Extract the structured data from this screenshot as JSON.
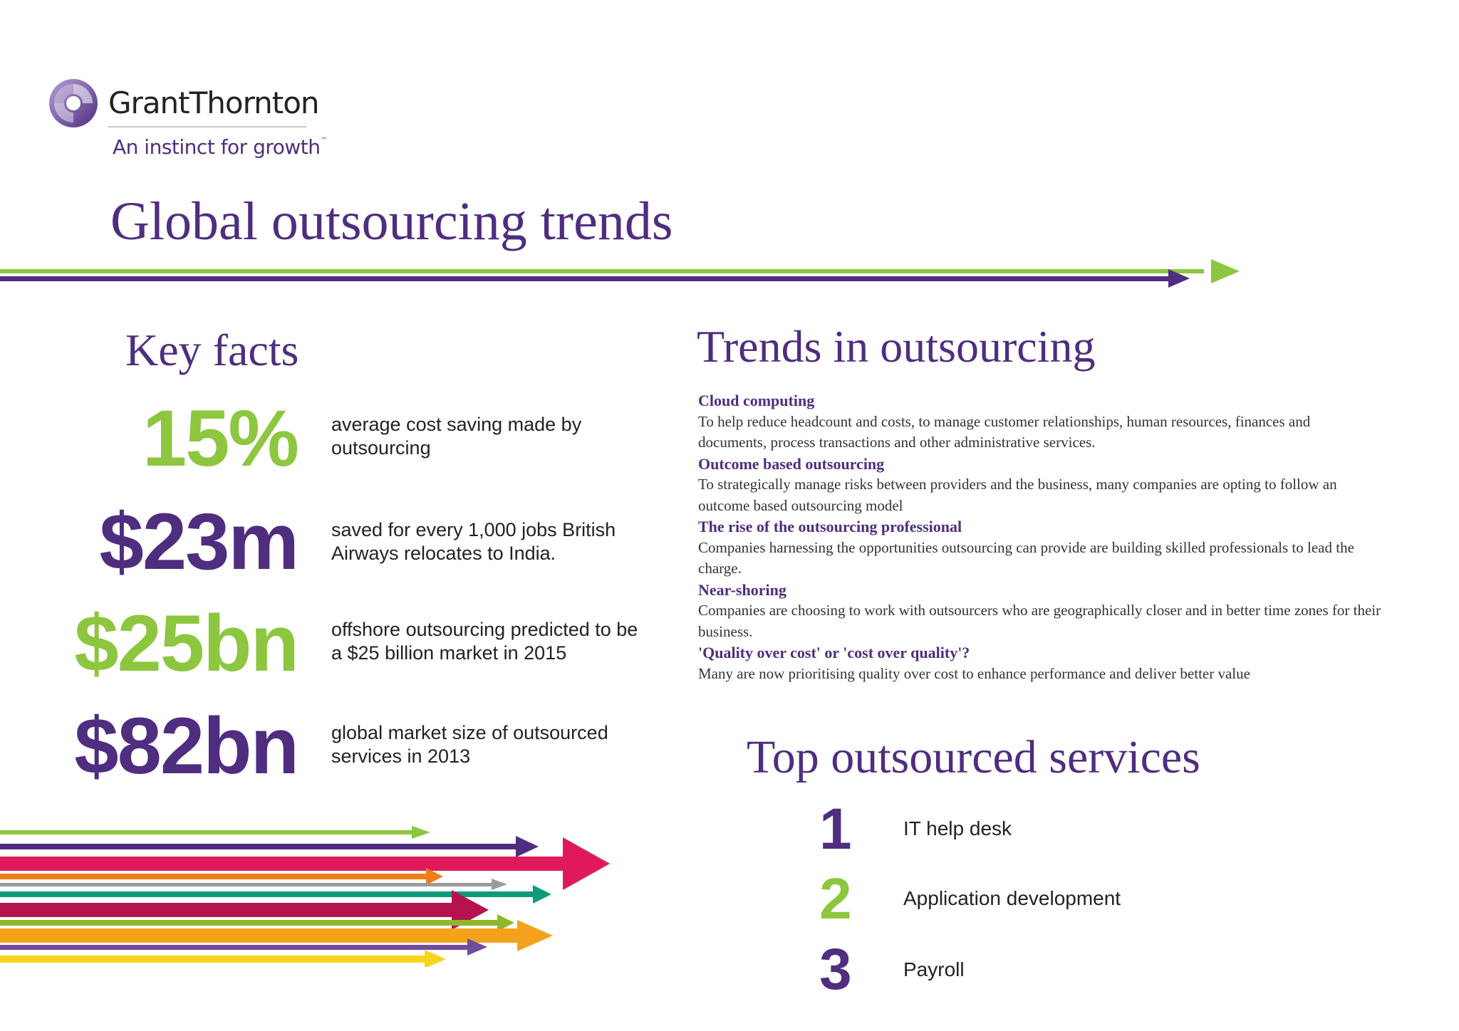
{
  "brand": {
    "name": "GrantThornton",
    "tagline": "An instinct for growth",
    "trademark": "™",
    "colors": {
      "purple": "#4f2d7f",
      "green": "#8dc63f"
    },
    "icon": "grant-thornton-logo-icon"
  },
  "title": "Global outsourcing trends",
  "key_facts": {
    "title": "Key facts",
    "items": [
      {
        "value": "15%",
        "text": "average cost saving made by outsourcing",
        "color": "#8dc63f"
      },
      {
        "value": "$23m",
        "text": "saved for every 1,000 jobs British Airways relocates  to India.",
        "color": "#4f2d7f"
      },
      {
        "value": "$25bn",
        "text": "offshore outsourcing predicted to be a $25 billion market in 2015",
        "color": "#8dc63f"
      },
      {
        "value": "$82bn",
        "text": "global market size of outsourced services in 2013",
        "color": "#4f2d7f"
      }
    ]
  },
  "trends": {
    "title": "Trends in outsourcing",
    "items": [
      {
        "heading": "Cloud computing",
        "body": "To help reduce headcount and costs, to manage customer relationships, human resources, finances and documents, process transactions and other administrative services."
      },
      {
        "heading": "Outcome based outsourcing",
        "body": "To strategically manage risks between providers and the business, many companies are opting to follow an outcome based outsourcing model"
      },
      {
        "heading": "The rise of the outsourcing professional",
        "body": "Companies harnessing the opportunities outsourcing can provide are building skilled professionals to lead the charge."
      },
      {
        "heading": "Near-shoring",
        "body": "Companies are choosing to work with outsourcers who are geographically closer and in better time zones for their business."
      },
      {
        "heading": "'Quality over cost' or 'cost over quality'?",
        "body": "Many are now prioritising quality over cost to enhance performance and deliver better value"
      }
    ]
  },
  "top_services": {
    "title": "Top outsourced services",
    "items": [
      {
        "rank": "1",
        "label": "IT help desk",
        "color": "#4f2d7f"
      },
      {
        "rank": "2",
        "label": "Application development",
        "color": "#8dc63f"
      },
      {
        "rank": "3",
        "label": "Payroll",
        "color": "#4f2d7f"
      }
    ]
  },
  "decoration": {
    "arrow_colors": [
      "#8dc63f",
      "#4f2d7f",
      "#e0195a",
      "#ef7d1a",
      "#9b9b9b",
      "#0f9b7a",
      "#b5124f",
      "#8cb82b",
      "#f4a21b",
      "#6e4c9e",
      "#f7d51a"
    ]
  }
}
